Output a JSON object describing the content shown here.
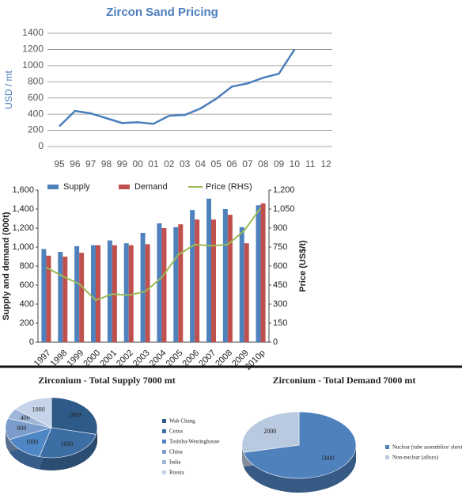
{
  "chart_data": [
    {
      "type": "line",
      "title": "Zircon Sand Pricing",
      "y_label": "USD / mt",
      "categories": [
        "95",
        "96",
        "97",
        "98",
        "99",
        "00",
        "01",
        "02",
        "03",
        "04",
        "05",
        "06",
        "07",
        "08",
        "09",
        "10",
        "11",
        "12"
      ],
      "values": [
        250,
        440,
        410,
        350,
        290,
        300,
        280,
        380,
        390,
        470,
        590,
        740,
        780,
        850,
        900,
        1200,
        null,
        null
      ],
      "color": "#4a7ebb",
      "ylim": [
        0,
        1400
      ],
      "yticks": [
        0,
        200,
        400,
        600,
        800,
        1000,
        1200,
        1400
      ],
      "grid": true
    },
    {
      "type": "combo",
      "y_label": "Supply and demand (000t)",
      "y2_label": "Price (US$/t)",
      "legend": "top",
      "categories": [
        "1997",
        "1998",
        "1999",
        "2000",
        "2001",
        "2002",
        "2003",
        "2004",
        "2005",
        "2006",
        "2007",
        "2008",
        "2009",
        "2010p"
      ],
      "series": [
        {
          "name": "Supply",
          "color": "#4f81bd",
          "values": [
            980,
            950,
            1010,
            1020,
            1070,
            1040,
            1150,
            1250,
            1210,
            1390,
            1510,
            1400,
            1210,
            1440
          ]
        },
        {
          "name": "Demand",
          "color": "#c0504d",
          "values": [
            910,
            900,
            940,
            1020,
            1020,
            1020,
            1030,
            1200,
            1240,
            1290,
            1290,
            1340,
            1040,
            1460
          ]
        },
        {
          "name": "Price (RHS)",
          "color": "#9bbb59",
          "axis": "y2",
          "values": [
            590,
            520,
            460,
            330,
            380,
            370,
            400,
            510,
            690,
            770,
            760,
            770,
            880,
            1060
          ]
        }
      ],
      "ylim": [
        0,
        1600
      ],
      "yticks": [
        0,
        200,
        400,
        600,
        800,
        {
          "value": 1000,
          "label": "1,000"
        },
        {
          "value": 1200,
          "label": "1,200"
        },
        {
          "value": 1400,
          "label": "1,400"
        },
        {
          "value": 1600,
          "label": "1,600"
        }
      ],
      "y2lim": [
        0,
        1200
      ],
      "y2ticks": [
        0,
        150,
        300,
        450,
        600,
        750,
        900,
        {
          "value": 1050,
          "label": "1,050"
        },
        {
          "value": 1200,
          "label": "1,200"
        }
      ]
    },
    {
      "type": "pie",
      "title": "Zirconium - Total Supply 7000 mt",
      "categories": [
        "Wah Chang",
        "Cezus",
        "Toshiba-Westinghouse",
        "China",
        "India",
        "Russia"
      ],
      "values": [
        2000,
        1800,
        1000,
        800,
        400,
        1000
      ],
      "colors": [
        "#2e5a87",
        "#3d6ea3",
        "#4f86c6",
        "#7c9dcb",
        "#9fb6d8",
        "#c6d4e9"
      ]
    },
    {
      "type": "pie",
      "title": "Zirconium - Total Demand 7000 mt",
      "categories": [
        "Nuclear (tube assemblies/ sheet)",
        "Non-nuclear (alloys)"
      ],
      "values": [
        5000,
        2000
      ],
      "colors": [
        "#4f81bd",
        "#b9c9e0"
      ]
    }
  ]
}
